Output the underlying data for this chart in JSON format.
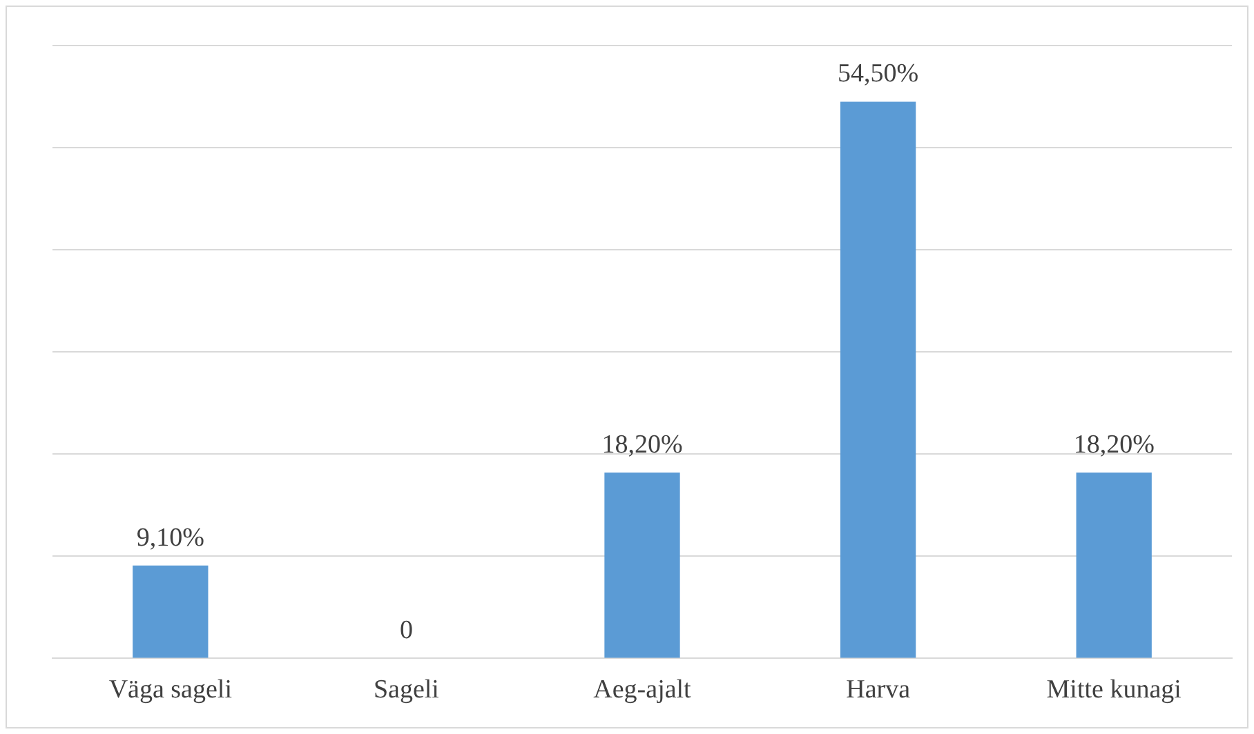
{
  "chart_data": {
    "type": "bar",
    "categories": [
      "Väga sageli",
      "Sageli",
      "Aeg-ajalt",
      "Harva",
      "Mitte kunagi"
    ],
    "values": [
      9.1,
      0,
      18.2,
      54.5,
      18.2
    ],
    "value_labels": [
      "9,10%",
      "0",
      "18,20%",
      "54,50%",
      "18,20%"
    ],
    "color": "#5b9bd5",
    "ylim": [
      0,
      60
    ],
    "yticks": [
      {
        "value": 0,
        "label": null
      },
      {
        "value": 10,
        "label": null
      },
      {
        "value": 20,
        "label": null
      },
      {
        "value": 30,
        "label": null
      },
      {
        "value": 40,
        "label": null
      },
      {
        "value": 50,
        "label": null
      },
      {
        "value": 60,
        "label": null
      }
    ],
    "grid": "y",
    "tick_labels": "x",
    "legend": false
  }
}
